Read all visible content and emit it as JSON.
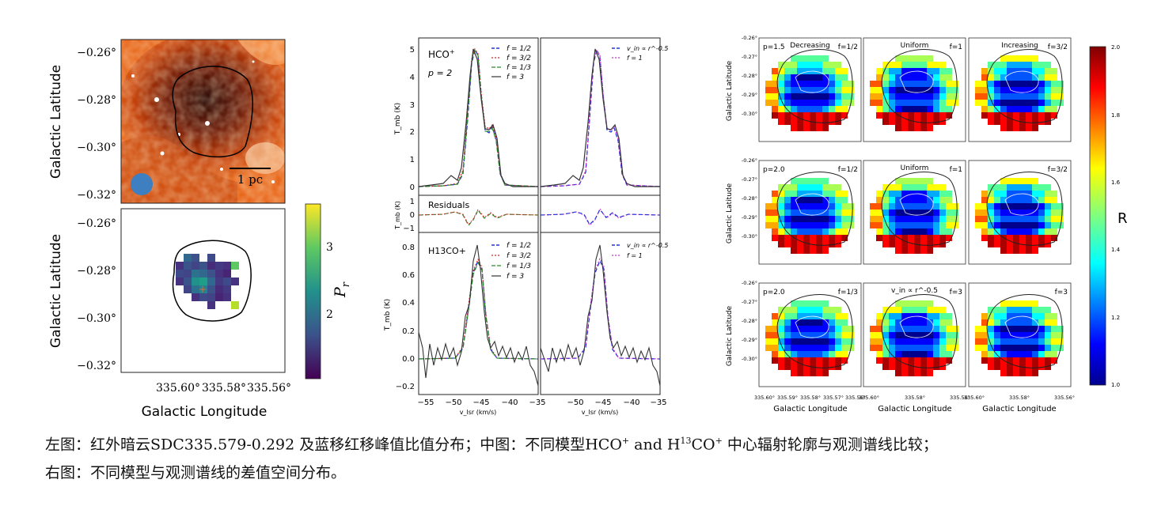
{
  "left": {
    "top_panel": {
      "ylabel": "Galactic Latitude",
      "yticks": [
        "−0.26°",
        "−0.28°",
        "−0.30°",
        "−0.32°"
      ],
      "scalebar_label": "1 pc"
    },
    "bottom_panel": {
      "ylabel": "Galactic Latitude",
      "xlabel": "Galactic Longitude",
      "yticks": [
        "−0.26°",
        "−0.28°",
        "−0.30°",
        "−0.32°"
      ],
      "xticks": [
        "335.60°",
        "335.58°",
        "335.56°"
      ],
      "colorbar_ticks": [
        "3",
        "2"
      ],
      "colorbar_label": "P",
      "colorbar_label_sub": "r"
    }
  },
  "middle": {
    "top_left": {
      "species": "HCO",
      "species_sup": "+",
      "model": "p = 2",
      "legend": [
        "f = 1/2",
        "f = 3/2",
        "f = 1/3",
        "f = 3"
      ],
      "yticks": [
        "5",
        "4",
        "3",
        "2",
        "1",
        "0"
      ]
    },
    "top_right": {
      "legend": [
        "v_in ∝ r^-0.5",
        "f = 1"
      ]
    },
    "residuals": {
      "label": "Residuals",
      "yticks": [
        "1",
        "0",
        "−1"
      ],
      "ylabel": "T_mb (K)"
    },
    "bottom_left": {
      "species": "H13CO+",
      "legend": [
        "f = 1/2",
        "f = 3/2",
        "f = 1/3",
        "f = 3"
      ],
      "yticks": [
        "0.8",
        "0.6",
        "0.4",
        "0.2",
        "0.0",
        "−0.2"
      ]
    },
    "bottom_right": {
      "legend": [
        "v_in ∝ r^-0.5",
        "f = 1"
      ]
    },
    "ylabel": "T_mb (K)",
    "xticks": [
      "−55",
      "−50",
      "−45",
      "−40",
      "−35"
    ],
    "xlabel": "v_lsr (km/s)"
  },
  "right": {
    "rows": [
      [
        {
          "left_label": "p=1.5",
          "center_label": "Decreasing",
          "right_label": "f=1/2"
        },
        {
          "left_label": "",
          "center_label": "Uniform",
          "right_label": "f=1"
        },
        {
          "left_label": "",
          "center_label": "Increasing",
          "right_label": "f=3/2"
        }
      ],
      [
        {
          "left_label": "p=2.0",
          "center_label": "",
          "right_label": "f=1/2"
        },
        {
          "left_label": "",
          "center_label": "Uniform",
          "right_label": "f=1"
        },
        {
          "left_label": "",
          "center_label": "",
          "right_label": "f=3/2"
        }
      ],
      [
        {
          "left_label": "p=2.0",
          "center_label": "",
          "right_label": "f=1/3"
        },
        {
          "left_label": "",
          "center_label": "v_in ∝ r^-0.5",
          "right_label": "f=3"
        },
        {
          "left_label": "",
          "center_label": "",
          "right_label": "f=3"
        }
      ]
    ],
    "yticks": [
      "-0.26°",
      "-0.27°",
      "-0.28°",
      "-0.29°",
      "-0.30°"
    ],
    "ylabel": "Galactic Latitude",
    "xticks_first": [
      "335.60°",
      "335.59°",
      "335.58°",
      "335.57°",
      "335.56°"
    ],
    "xticks_other": [
      "335.60°",
      "335.58°",
      "335.56°"
    ],
    "xlabel": "Galactic Longitude",
    "colorbar_ticks": [
      "2.0",
      "1.8",
      "1.6",
      "1.4",
      "1.2",
      "1.0"
    ],
    "colorbar_label": "R"
  },
  "caption": {
    "line1_a": "左图：红外暗云SDC335.579-0.292 及蓝移红移峰值比值分布；中图：不同模型HCO",
    "line1_sup1": "+",
    "line1_b": " and H",
    "line1_sup2": "13",
    "line1_c": "CO",
    "line1_sup3": "+",
    "line1_d": " 中心辐射轮廓与观测谱线比较；",
    "line2": "右图：不同模型与观测谱线的差值空间分布。"
  },
  "colors": {
    "blue": "#2233dd",
    "red": "#e02020",
    "green": "#2a8a2a",
    "black": "#333333",
    "magenta": "#cc33cc",
    "beam": "#3d7fc0"
  }
}
